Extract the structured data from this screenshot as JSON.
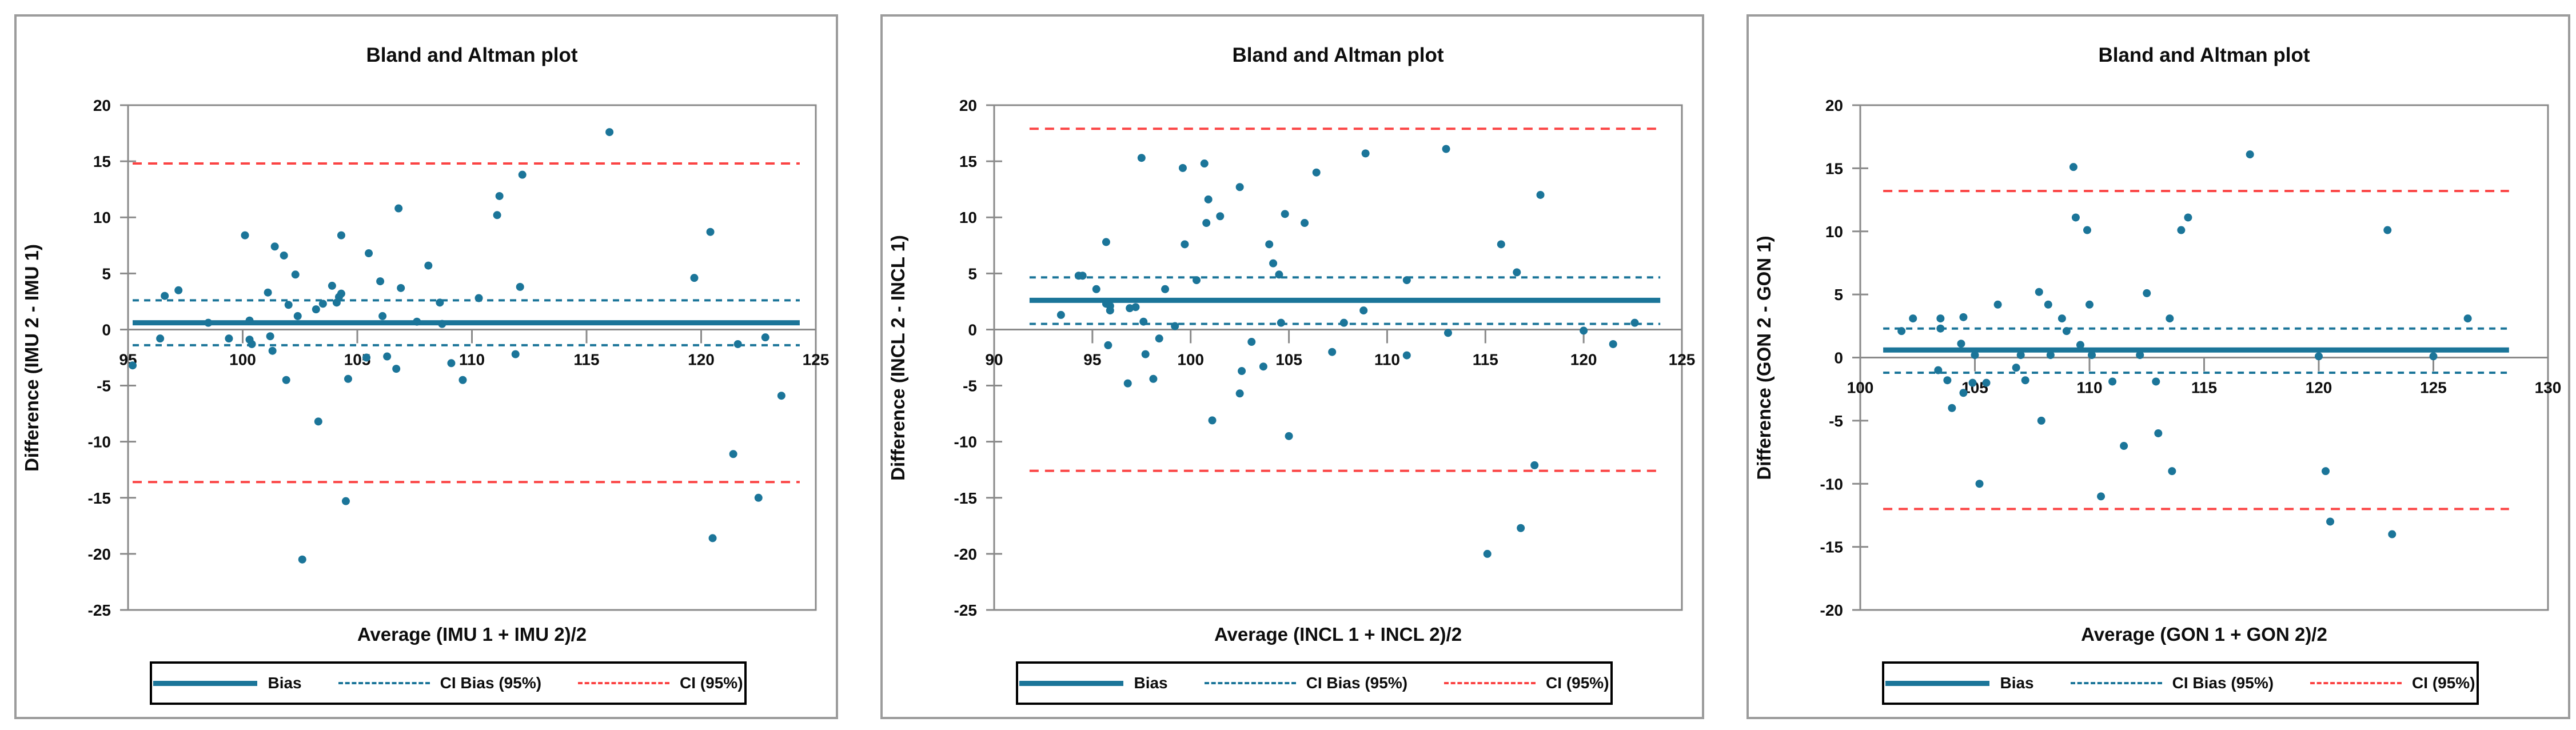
{
  "colors": {
    "teal": "#1B7599",
    "red": "#FB4343",
    "axis": "#8A8A8A",
    "panel_border": "#9C9C9C",
    "legend_border": "#000000",
    "text": "#0D0D0D",
    "background": "#FFFFFF"
  },
  "legend": {
    "items": [
      {
        "label": "Bias",
        "style": "solid",
        "color": "#1B7599"
      },
      {
        "label": "CI Bias (95%)",
        "style": "dashed",
        "color": "#1B7599"
      },
      {
        "label": "CI (95%)",
        "style": "dashed",
        "color": "#FB4343"
      }
    ]
  },
  "chart_data": [
    {
      "type": "scatter",
      "title": "Bland and Altman plot",
      "xlabel": "Average (IMU 1 + IMU 2)/2",
      "ylabel": "Difference (IMU 2 - IMU 1)",
      "xlim": [
        95,
        125
      ],
      "ylim": [
        -25,
        20
      ],
      "xticks": [
        95,
        100,
        105,
        110,
        115,
        120,
        125
      ],
      "yticks": [
        20,
        15,
        10,
        5,
        0,
        -5,
        -10,
        -15,
        -20,
        -25
      ],
      "grid": false,
      "legend_position": "bottom",
      "bias": 0.6,
      "ci_bias": [
        -1.4,
        2.6
      ],
      "ci": [
        -13.6,
        14.8
      ],
      "line_span": [
        95.2,
        124.3
      ],
      "points": [
        [
          95.2,
          -3.2
        ],
        [
          96.4,
          -0.8
        ],
        [
          96.6,
          3.0
        ],
        [
          97.2,
          3.5
        ],
        [
          98.5,
          0.6
        ],
        [
          99.4,
          -0.8
        ],
        [
          100.1,
          8.4
        ],
        [
          100.3,
          0.8
        ],
        [
          100.3,
          -0.9
        ],
        [
          100.4,
          -1.3
        ],
        [
          101.1,
          3.3
        ],
        [
          101.2,
          -0.6
        ],
        [
          101.3,
          -1.9
        ],
        [
          101.4,
          7.4
        ],
        [
          101.8,
          6.6
        ],
        [
          101.9,
          -4.5
        ],
        [
          102.0,
          2.2
        ],
        [
          102.3,
          4.9
        ],
        [
          102.4,
          1.2
        ],
        [
          102.6,
          -20.5
        ],
        [
          103.2,
          1.8
        ],
        [
          103.3,
          -8.2
        ],
        [
          103.5,
          2.3
        ],
        [
          103.9,
          3.9
        ],
        [
          104.1,
          2.4
        ],
        [
          104.2,
          2.9
        ],
        [
          104.3,
          3.2
        ],
        [
          104.3,
          8.4
        ],
        [
          104.6,
          -4.4
        ],
        [
          104.5,
          -15.3
        ],
        [
          105.4,
          -2.5
        ],
        [
          105.5,
          6.8
        ],
        [
          106.0,
          4.3
        ],
        [
          106.1,
          1.2
        ],
        [
          106.3,
          -2.4
        ],
        [
          106.7,
          -3.5
        ],
        [
          106.8,
          10.8
        ],
        [
          106.9,
          3.7
        ],
        [
          107.6,
          0.7
        ],
        [
          108.1,
          5.7
        ],
        [
          108.6,
          2.4
        ],
        [
          108.7,
          0.5
        ],
        [
          109.1,
          -3.0
        ],
        [
          109.6,
          -4.5
        ],
        [
          110.3,
          2.8
        ],
        [
          111.1,
          10.2
        ],
        [
          111.2,
          11.9
        ],
        [
          111.9,
          -2.2
        ],
        [
          112.1,
          3.8
        ],
        [
          112.2,
          13.8
        ],
        [
          116.0,
          17.6
        ],
        [
          119.7,
          4.6
        ],
        [
          120.4,
          8.7
        ],
        [
          120.5,
          -18.6
        ],
        [
          121.4,
          -11.1
        ],
        [
          121.6,
          -1.3
        ],
        [
          122.5,
          -15.0
        ],
        [
          122.8,
          -0.7
        ],
        [
          123.5,
          -5.9
        ]
      ]
    },
    {
      "type": "scatter",
      "title": "Bland and Altman plot",
      "xlabel": "Average (INCL 1 + INCL 2)/2",
      "ylabel": "Difference (INCL 2 - INCL 1)",
      "xlim": [
        90,
        125
      ],
      "ylim": [
        -25,
        20
      ],
      "xticks": [
        90,
        95,
        100,
        105,
        110,
        115,
        120,
        125
      ],
      "yticks": [
        20,
        15,
        10,
        5,
        0,
        -5,
        -10,
        -15,
        -20,
        -25
      ],
      "grid": false,
      "legend_position": "bottom",
      "bias": 2.6,
      "ci_bias": [
        0.5,
        4.65
      ],
      "ci": [
        -12.6,
        17.9
      ],
      "line_span": [
        91.8,
        123.9
      ],
      "points": [
        [
          93.4,
          1.3
        ],
        [
          94.3,
          4.8
        ],
        [
          94.5,
          4.8
        ],
        [
          95.2,
          3.6
        ],
        [
          95.7,
          7.8
        ],
        [
          95.7,
          2.3
        ],
        [
          95.8,
          -1.4
        ],
        [
          95.9,
          2.1
        ],
        [
          95.9,
          1.7
        ],
        [
          96.9,
          1.9
        ],
        [
          96.8,
          -4.8
        ],
        [
          97.2,
          2.0
        ],
        [
          97.5,
          15.3
        ],
        [
          97.6,
          0.7
        ],
        [
          97.7,
          -2.2
        ],
        [
          98.1,
          -4.4
        ],
        [
          98.4,
          -0.8
        ],
        [
          98.7,
          3.6
        ],
        [
          99.2,
          0.3
        ],
        [
          99.6,
          14.4
        ],
        [
          99.7,
          7.6
        ],
        [
          100.3,
          4.4
        ],
        [
          100.7,
          14.8
        ],
        [
          100.8,
          9.5
        ],
        [
          100.9,
          11.6
        ],
        [
          101.1,
          -8.1
        ],
        [
          101.5,
          10.1
        ],
        [
          102.5,
          12.7
        ],
        [
          102.6,
          -3.7
        ],
        [
          102.5,
          -5.7
        ],
        [
          103.1,
          -1.1
        ],
        [
          103.7,
          -3.3
        ],
        [
          104.0,
          7.6
        ],
        [
          104.2,
          5.9
        ],
        [
          104.5,
          4.9
        ],
        [
          104.6,
          0.6
        ],
        [
          104.8,
          10.3
        ],
        [
          105.0,
          -9.5
        ],
        [
          105.8,
          9.5
        ],
        [
          106.4,
          14.0
        ],
        [
          107.2,
          -2.0
        ],
        [
          107.8,
          0.6
        ],
        [
          108.8,
          1.7
        ],
        [
          108.9,
          15.7
        ],
        [
          111.0,
          4.4
        ],
        [
          111.0,
          -2.3
        ],
        [
          113.0,
          16.1
        ],
        [
          113.1,
          -0.3
        ],
        [
          115.1,
          -20.0
        ],
        [
          115.8,
          7.6
        ],
        [
          116.6,
          5.1
        ],
        [
          116.8,
          -17.7
        ],
        [
          117.5,
          -12.1
        ],
        [
          117.8,
          12.0
        ],
        [
          120.0,
          -0.1
        ],
        [
          121.5,
          -1.3
        ],
        [
          122.6,
          0.6
        ]
      ]
    },
    {
      "type": "scatter",
      "title": "Bland and Altman plot",
      "xlabel": "Average (GON 1 + GON 2)/2",
      "ylabel": "Difference (GON 2 - GON 1)",
      "xlim": [
        100,
        130
      ],
      "ylim": [
        -20,
        20
      ],
      "xticks": [
        100,
        105,
        110,
        115,
        120,
        125,
        130
      ],
      "yticks": [
        20,
        15,
        10,
        5,
        0,
        -5,
        -10,
        -15,
        -20
      ],
      "grid": false,
      "legend_position": "bottom",
      "bias": 0.6,
      "ci_bias": [
        -1.2,
        2.3
      ],
      "ci": [
        -12.0,
        13.2
      ],
      "line_span": [
        101.0,
        128.3
      ],
      "points": [
        [
          101.8,
          2.1
        ],
        [
          102.3,
          3.1
        ],
        [
          103.4,
          -1.0
        ],
        [
          103.5,
          3.1
        ],
        [
          103.5,
          2.3
        ],
        [
          103.8,
          -1.8
        ],
        [
          104.0,
          -4.0
        ],
        [
          104.4,
          1.1
        ],
        [
          104.5,
          3.2
        ],
        [
          104.5,
          -2.8
        ],
        [
          104.9,
          -2.0
        ],
        [
          105.0,
          0.2
        ],
        [
          105.2,
          -10.0
        ],
        [
          105.5,
          -2.0
        ],
        [
          106.0,
          4.2
        ],
        [
          106.8,
          -0.8
        ],
        [
          107.0,
          0.2
        ],
        [
          107.2,
          -1.8
        ],
        [
          107.8,
          5.2
        ],
        [
          107.9,
          -5.0
        ],
        [
          108.2,
          4.2
        ],
        [
          108.3,
          0.2
        ],
        [
          108.8,
          3.1
        ],
        [
          109.0,
          2.1
        ],
        [
          109.3,
          15.1
        ],
        [
          109.4,
          11.1
        ],
        [
          109.6,
          1.0
        ],
        [
          109.9,
          10.1
        ],
        [
          110.0,
          4.2
        ],
        [
          110.1,
          0.2
        ],
        [
          110.5,
          -11.0
        ],
        [
          111.0,
          -1.9
        ],
        [
          111.5,
          -7.0
        ],
        [
          112.2,
          0.2
        ],
        [
          112.5,
          5.1
        ],
        [
          112.9,
          -1.9
        ],
        [
          113.0,
          -6.0
        ],
        [
          113.5,
          3.1
        ],
        [
          113.6,
          -9.0
        ],
        [
          114.0,
          10.1
        ],
        [
          114.3,
          11.1
        ],
        [
          117.0,
          16.1
        ],
        [
          120.0,
          0.1
        ],
        [
          120.3,
          -9.0
        ],
        [
          120.5,
          -13.0
        ],
        [
          123.0,
          10.1
        ],
        [
          123.2,
          -14.0
        ],
        [
          125.0,
          0.1
        ],
        [
          126.5,
          3.1
        ]
      ]
    }
  ]
}
